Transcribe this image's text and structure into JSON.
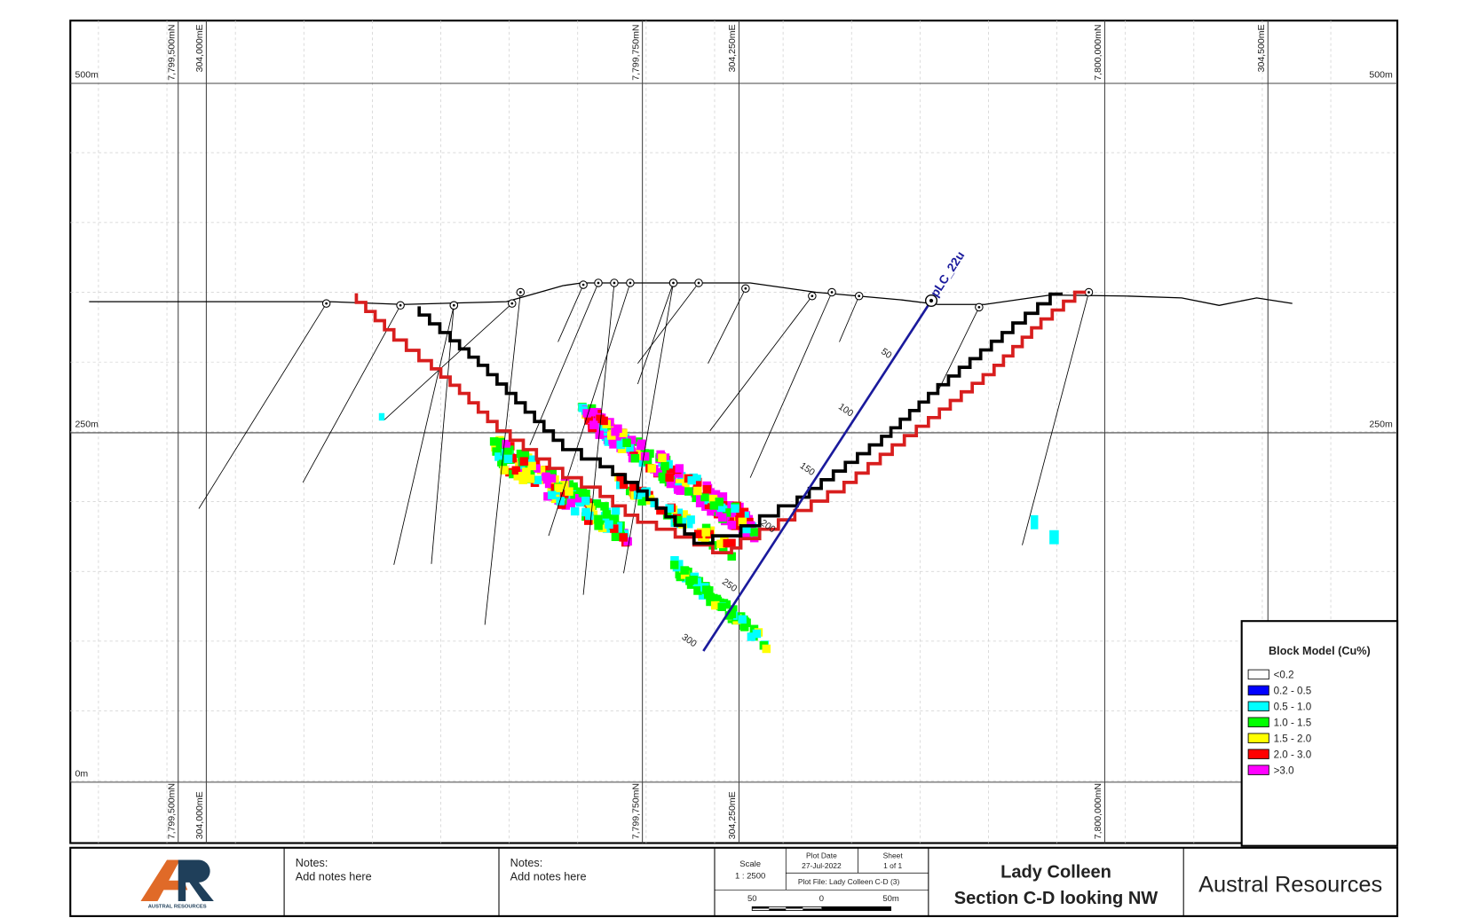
{
  "map": {
    "elevation_labels": [
      "500m",
      "250m",
      "0m"
    ],
    "grid_labels": [
      "7,799,500mN",
      "304,000mE",
      "7,799,750mN",
      "304,250mE",
      "7,800,000mN",
      "304,500mE"
    ],
    "drillhole": {
      "name": "pLC_22u",
      "depths": [
        "50",
        "100",
        "150",
        "200",
        "250",
        "300"
      ]
    }
  },
  "legend": {
    "title": "Block Model (Cu%)",
    "items": [
      {
        "label": "<0.2",
        "color": "#ffffff"
      },
      {
        "label": "0.2 - 0.5",
        "color": "#0000ff"
      },
      {
        "label": "0.5 - 1.0",
        "color": "#00ffff"
      },
      {
        "label": "1.0 - 1.5",
        "color": "#00ff00"
      },
      {
        "label": "1.5 - 2.0",
        "color": "#ffff00"
      },
      {
        "label": "2.0 - 3.0",
        "color": "#ff0000"
      },
      {
        "label": ">3.0",
        "color": "#ff00ff"
      }
    ]
  },
  "title_block": {
    "logo_text": "AUSTRAL RESOURCES",
    "notes": [
      {
        "heading": "Notes:",
        "text": "Add notes here"
      },
      {
        "heading": "Notes:",
        "text": "Add notes here"
      }
    ],
    "scale_heading": "Scale",
    "scale": "1 : 2500",
    "plot_date_heading": "Plot Date",
    "plot_date": "27-Jul-2022",
    "sheet_heading": "Sheet",
    "sheet": "1 of 1",
    "plot_file": "Plot File: Lady Colleen C-D (3)",
    "scale_bar_labels": [
      "50",
      "0",
      "50m"
    ],
    "title_lines": [
      "Lady Colleen",
      "Section C-D looking NW"
    ],
    "company": "Austral Resources"
  }
}
